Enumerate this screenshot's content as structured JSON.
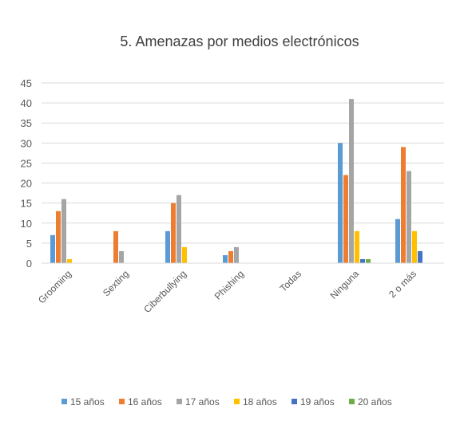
{
  "chart_data": {
    "type": "bar",
    "title": "5. Amenazas por medios electrónicos",
    "xlabel": "",
    "ylabel": "",
    "ylim": [
      0,
      45
    ],
    "yticks": [
      0,
      5,
      10,
      15,
      20,
      25,
      30,
      35,
      40,
      45
    ],
    "grid": true,
    "legend_position": "bottom",
    "categories": [
      "Grooming",
      "Sexting",
      "Ciberbullying",
      "Phishing",
      "Todas",
      "Ninguna",
      "2 o más"
    ],
    "series": [
      {
        "name": "15 años",
        "color": "#5B9BD5",
        "values": [
          7,
          0,
          8,
          2,
          0,
          30,
          11
        ]
      },
      {
        "name": "16 años",
        "color": "#ED7D31",
        "values": [
          13,
          8,
          15,
          3,
          0,
          22,
          29
        ]
      },
      {
        "name": "17 años",
        "color": "#A5A5A5",
        "values": [
          16,
          3,
          17,
          4,
          0,
          41,
          23
        ]
      },
      {
        "name": "18 años",
        "color": "#FFC000",
        "values": [
          1,
          0,
          4,
          0,
          0,
          8,
          8
        ]
      },
      {
        "name": "19 años",
        "color": "#4472C4",
        "values": [
          0,
          0,
          0,
          0,
          0,
          1,
          3
        ]
      },
      {
        "name": "20 años",
        "color": "#70AD47",
        "values": [
          0,
          0,
          0,
          0,
          0,
          1,
          0
        ]
      }
    ]
  }
}
